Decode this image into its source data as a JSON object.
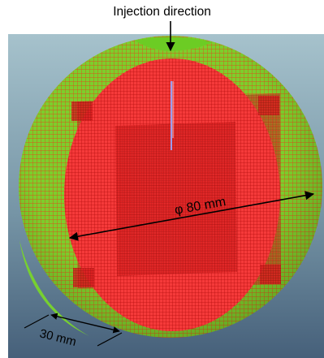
{
  "figure": {
    "title": "Injection direction",
    "diameter_label": "φ 80 mm",
    "thickness_label": "30 mm"
  },
  "colors": {
    "background_top": "#9cb9c4",
    "background_bottom": "#4a6476",
    "outer_shell": "#6fcf2a",
    "inner_mesh": "#ef2424",
    "mesh_line": "#c7140f",
    "gate": "#8f8fe0",
    "annotation": "#000000"
  },
  "icons": [
    "arrow-down-icon",
    "double-arrow-icon"
  ]
}
